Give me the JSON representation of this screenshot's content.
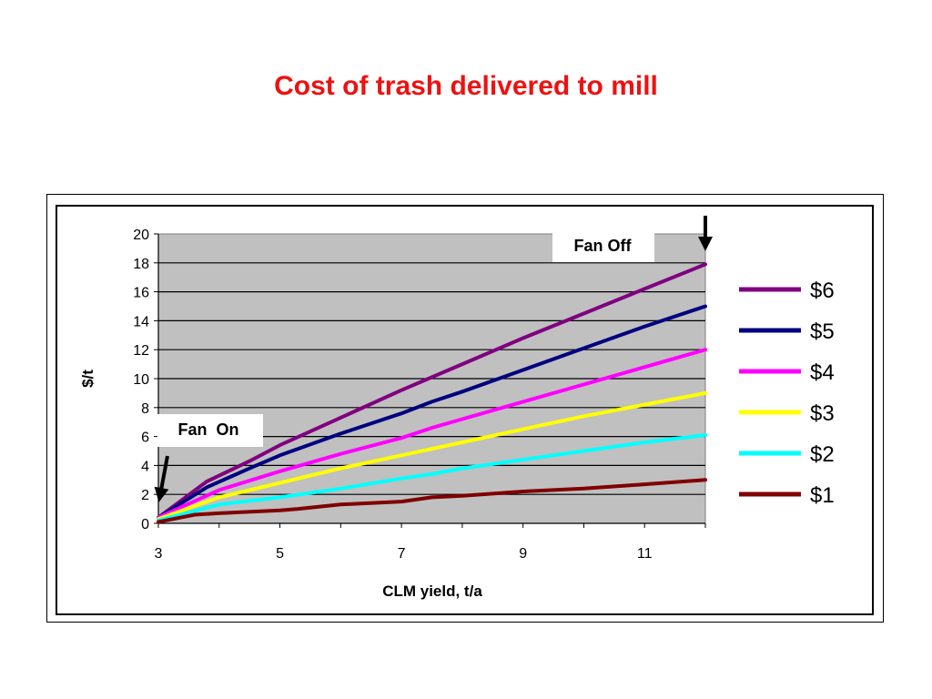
{
  "slide": {
    "title": "Cost of trash delivered to mill"
  },
  "chart_data": {
    "type": "line",
    "title": "",
    "xlabel": "CLM yield, t/a",
    "ylabel": "$/t",
    "xlim": [
      3,
      12
    ],
    "ylim": [
      0,
      20
    ],
    "x_ticks": [
      "3",
      "5",
      "7",
      "9",
      "11"
    ],
    "y_ticks": [
      "0",
      "2",
      "4",
      "6",
      "8",
      "10",
      "12",
      "14",
      "16",
      "18",
      "20"
    ],
    "grid": "horizontal",
    "legend_position": "right",
    "series": [
      {
        "name": "$6",
        "color": "#800080",
        "x": [
          3,
          3.8,
          4.5,
          5,
          6,
          7,
          8,
          9,
          10,
          11,
          12
        ],
        "y": [
          0.4,
          2.9,
          4.3,
          5.4,
          7.3,
          9.2,
          11.0,
          12.8,
          14.5,
          16.2,
          17.9
        ]
      },
      {
        "name": "$5",
        "color": "#000080",
        "x": [
          3,
          3.8,
          4.5,
          5,
          6,
          7,
          7.5,
          8,
          9,
          10,
          11,
          12
        ],
        "y": [
          0.4,
          2.5,
          3.8,
          4.7,
          6.2,
          7.6,
          8.4,
          9.1,
          10.6,
          12.1,
          13.6,
          15.0
        ]
      },
      {
        "name": "$4",
        "color": "#ff00ff",
        "x": [
          3,
          4,
          5,
          6,
          7,
          7.5,
          8,
          9,
          10,
          11,
          12
        ],
        "y": [
          0.4,
          2.3,
          3.6,
          4.8,
          5.9,
          6.6,
          7.2,
          8.4,
          9.6,
          10.8,
          12.0
        ]
      },
      {
        "name": "$3",
        "color": "#ffff00",
        "x": [
          3,
          4,
          5,
          6,
          7,
          8,
          9,
          10,
          11,
          12
        ],
        "y": [
          0.3,
          1.8,
          2.8,
          3.8,
          4.7,
          5.6,
          6.5,
          7.4,
          8.2,
          9.0
        ]
      },
      {
        "name": "$2",
        "color": "#00ffff",
        "x": [
          3,
          4,
          5,
          6,
          7,
          7.5,
          8,
          9,
          10,
          11,
          12
        ],
        "y": [
          0.2,
          1.3,
          1.8,
          2.4,
          3.1,
          3.4,
          3.8,
          4.4,
          5.0,
          5.6,
          6.1
        ]
      },
      {
        "name": "$1",
        "color": "#800000",
        "x": [
          3,
          3.6,
          4,
          5,
          5.3,
          6,
          7,
          7.5,
          8,
          9,
          10,
          11,
          12
        ],
        "y": [
          0.1,
          0.6,
          0.7,
          0.9,
          1.0,
          1.3,
          1.5,
          1.8,
          1.9,
          2.2,
          2.4,
          2.7,
          3.0
        ]
      }
    ],
    "annotations": [
      {
        "text": "Fan Off",
        "arrow_x": 12,
        "points_to": "top-right"
      },
      {
        "text": "Fan  On",
        "arrow_x": 3,
        "points_to": "bottom-left"
      }
    ]
  }
}
